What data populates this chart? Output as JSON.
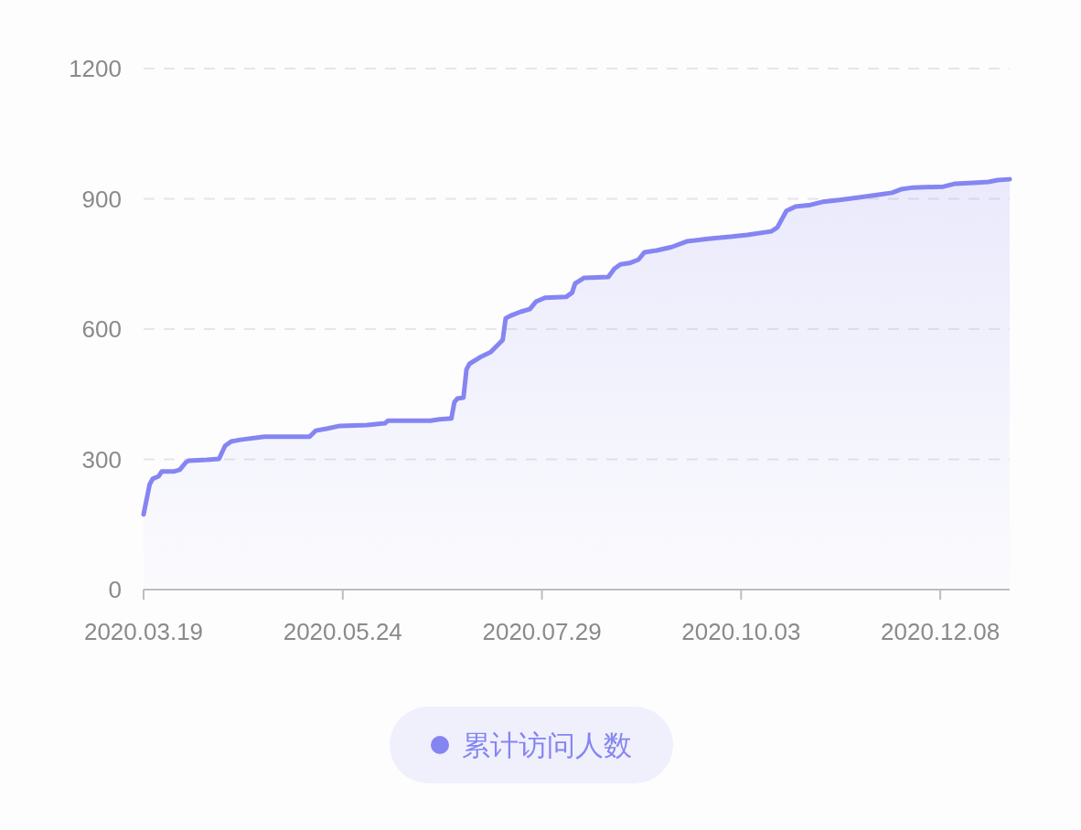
{
  "chart_data": {
    "type": "area",
    "x": [
      "2020-03-19",
      "2020-03-21",
      "2020-03-22",
      "2020-03-24",
      "2020-03-25",
      "2020-03-29",
      "2020-03-31",
      "2020-04-02",
      "2020-04-03",
      "2020-04-09",
      "2020-04-13",
      "2020-04-15",
      "2020-04-17",
      "2020-04-20",
      "2020-04-28",
      "2020-05-01",
      "2020-05-13",
      "2020-05-15",
      "2020-05-19",
      "2020-05-23",
      "2020-06-01",
      "2020-06-07",
      "2020-06-08",
      "2020-06-22",
      "2020-06-25",
      "2020-06-29",
      "2020-06-30",
      "2020-07-01",
      "2020-07-03",
      "2020-07-04",
      "2020-07-05",
      "2020-07-09",
      "2020-07-12",
      "2020-07-15",
      "2020-07-16",
      "2020-07-17",
      "2020-07-19",
      "2020-07-22",
      "2020-07-25",
      "2020-07-27",
      "2020-07-30",
      "2020-08-06",
      "2020-08-08",
      "2020-08-09",
      "2020-08-12",
      "2020-08-20",
      "2020-08-22",
      "2020-08-24",
      "2020-08-27",
      "2020-08-30",
      "2020-09-01",
      "2020-09-05",
      "2020-09-10",
      "2020-09-15",
      "2020-09-22",
      "2020-09-30",
      "2020-10-05",
      "2020-10-13",
      "2020-10-15",
      "2020-10-18",
      "2020-10-21",
      "2020-10-26",
      "2020-10-30",
      "2020-11-04",
      "2020-11-11",
      "2020-11-17",
      "2020-11-22",
      "2020-11-25",
      "2020-11-29",
      "2020-12-09",
      "2020-12-13",
      "2020-12-19",
      "2020-12-24",
      "2020-12-27",
      "2020-12-31"
    ],
    "series": [
      {
        "name": "累计访问人数",
        "color": "#8585f2",
        "values": [
          173,
          242,
          255,
          261,
          272,
          272,
          276,
          293,
          297,
          299,
          301,
          331,
          341,
          345,
          352,
          352,
          352,
          366,
          371,
          377,
          379,
          383,
          389,
          389,
          392,
          394,
          432,
          440,
          442,
          507,
          520,
          537,
          547,
          568,
          575,
          625,
          632,
          640,
          646,
          663,
          672,
          674,
          684,
          705,
          718,
          720,
          739,
          749,
          752,
          760,
          777,
          781,
          789,
          802,
          808,
          813,
          817,
          825,
          834,
          872,
          882,
          886,
          893,
          897,
          903,
          909,
          914,
          922,
          926,
          928,
          935,
          937,
          939,
          943,
          945
        ]
      }
    ],
    "xlim": [
      "2020-03-19",
      "2020-12-31"
    ],
    "xticks": [
      {
        "value": "2020-03-19",
        "label": "2020.03.19"
      },
      {
        "value": "2020-05-24",
        "label": "2020.05.24"
      },
      {
        "value": "2020-07-29",
        "label": "2020.07.29"
      },
      {
        "value": "2020-10-03",
        "label": "2020.10.03"
      },
      {
        "value": "2020-12-08",
        "label": "2020.12.08"
      }
    ],
    "ylim": [
      0,
      1200
    ],
    "yticks": [
      0,
      300,
      600,
      900,
      1200
    ],
    "grid": "y",
    "legend": "bottom",
    "marker": "none",
    "line_style": "solid"
  }
}
